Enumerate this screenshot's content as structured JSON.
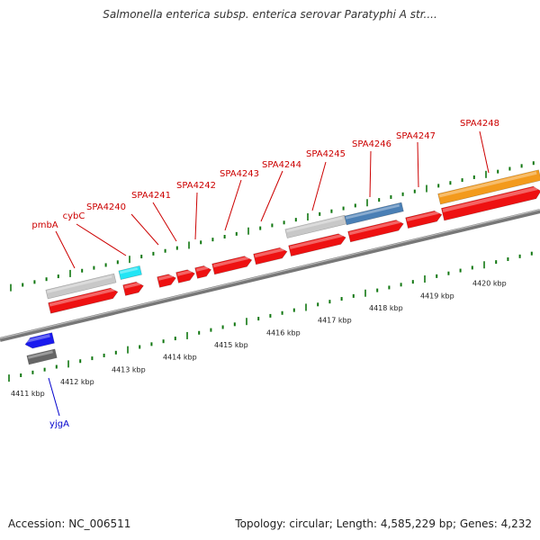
{
  "title": "Salmonella enterica subsp. enterica serovar Paratyphi A str....",
  "footer": {
    "accession": "Accession: NC_006511",
    "stats": "Topology: circular; Length: 4,585,229 bp; Genes: 4,232"
  },
  "scale_labels": [
    "4411 kbp",
    "4412 kbp",
    "4413 kbp",
    "4414 kbp",
    "4415 kbp",
    "4416 kbp",
    "4417 kbp",
    "4418 kbp",
    "4419 kbp",
    "4420 kbp"
  ],
  "genes": [
    {
      "name": "pmbA",
      "strand": "forward",
      "label_color": "#cc0000"
    },
    {
      "name": "cybC",
      "strand": "forward",
      "label_color": "#cc0000"
    },
    {
      "name": "SPA4240",
      "strand": "forward",
      "label_color": "#cc0000"
    },
    {
      "name": "SPA4241",
      "strand": "forward",
      "label_color": "#cc0000"
    },
    {
      "name": "SPA4242",
      "strand": "forward",
      "label_color": "#cc0000"
    },
    {
      "name": "SPA4243",
      "strand": "forward",
      "label_color": "#cc0000"
    },
    {
      "name": "SPA4244",
      "strand": "forward",
      "label_color": "#cc0000"
    },
    {
      "name": "SPA4245",
      "strand": "forward",
      "label_color": "#cc0000"
    },
    {
      "name": "SPA4246",
      "strand": "forward",
      "label_color": "#cc0000"
    },
    {
      "name": "SPA4247",
      "strand": "forward",
      "label_color": "#cc0000"
    },
    {
      "name": "SPA4248",
      "strand": "forward",
      "label_color": "#cc0000"
    },
    {
      "name": "yjgA",
      "strand": "reverse",
      "label_color": "#0000cc"
    }
  ],
  "colors": {
    "gene_red": "#ee1111",
    "reverse_blue": "#1a1aee",
    "backbone": "#777777",
    "tick_green": "#117711",
    "cds_gray": "#c8c8c8",
    "cyan": "#22e5f5",
    "steel_blue": "#4a7fb5",
    "orange": "#f39a1c",
    "dark_gray": "#666666"
  }
}
